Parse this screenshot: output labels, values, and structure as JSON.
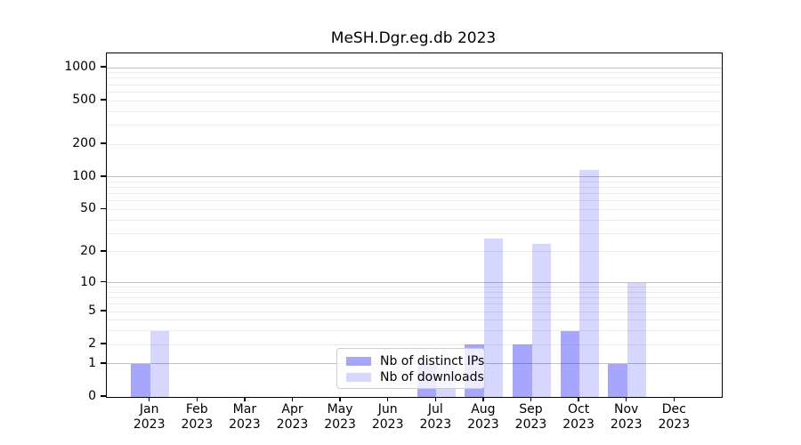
{
  "title": "MeSH.Dgr.eg.db 2023",
  "chart_data": {
    "type": "bar",
    "title": "MeSH.Dgr.eg.db 2023",
    "xlabel": "",
    "ylabel": "",
    "categories": [
      "Jan 2023",
      "Feb 2023",
      "Mar 2023",
      "Apr 2023",
      "May 2023",
      "Jun 2023",
      "Jul 2023",
      "Aug 2023",
      "Sep 2023",
      "Oct 2023",
      "Nov 2023",
      "Dec 2023"
    ],
    "series": [
      {
        "key": "distinct-ips",
        "name": "Nb of distinct IPs",
        "color_rgba": "rgba(0,0,255,0.35)",
        "color_hex": "#a6a6ff",
        "values": [
          1,
          0,
          0,
          0,
          0,
          0,
          1,
          2,
          2,
          3,
          1,
          0
        ]
      },
      {
        "key": "downloads",
        "name": "Nb of downloads",
        "color_rgba": "rgba(0,0,255,0.16)",
        "color_hex": "#d6d6fb",
        "values": [
          3,
          0,
          0,
          0,
          0,
          0,
          1,
          27,
          24,
          115,
          10,
          0
        ]
      }
    ],
    "y_ticks": [
      0,
      1,
      2,
      5,
      10,
      20,
      50,
      100,
      200,
      500,
      1000
    ],
    "y_scale": "log1p",
    "ylim": [
      0,
      1350
    ],
    "grid": {
      "major_lines_at": [
        1,
        10,
        100,
        1000
      ],
      "minor_lines": "2-9 per decade",
      "orientation": "horizontal"
    },
    "legend_position": "inside lower-center"
  }
}
